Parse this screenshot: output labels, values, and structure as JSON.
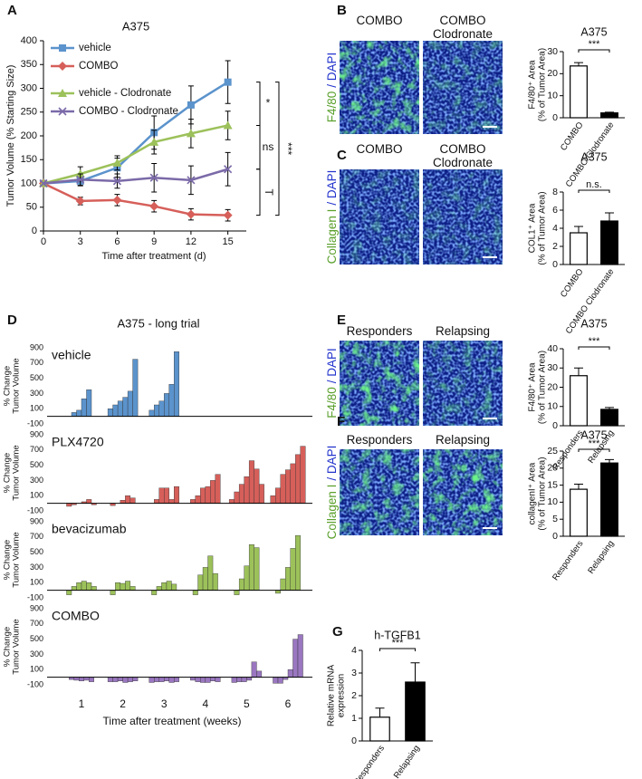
{
  "chart_data": [
    {
      "type": "line",
      "panel": "A",
      "title": "A375",
      "xlabel": "Time after treatment (d)",
      "ylabel": "Tumor Volume (% Starting Size)",
      "x": [
        0,
        3,
        6,
        9,
        12,
        15
      ],
      "xlim": [
        0,
        16.5
      ],
      "xticks": [
        0,
        3,
        6,
        9,
        12,
        15
      ],
      "ylim": [
        0,
        400
      ],
      "yticks": [
        0,
        50,
        100,
        150,
        200,
        250,
        300,
        350,
        400
      ],
      "series": [
        {
          "name": "vehicle",
          "color": "#5b93cc",
          "values": [
            100,
            105,
            133,
            207,
            265,
            313
          ],
          "errors": [
            0,
            10,
            20,
            35,
            40,
            45
          ]
        },
        {
          "name": "COMBO",
          "color": "#d65f5a",
          "values": [
            100,
            63,
            65,
            52,
            35,
            33
          ],
          "errors": [
            0,
            8,
            12,
            12,
            12,
            12
          ]
        },
        {
          "name": "vehicle - Clodronate",
          "color": "#9cc15a",
          "values": [
            100,
            120,
            143,
            187,
            205,
            222
          ],
          "errors": [
            0,
            15,
            15,
            25,
            30,
            30
          ]
        },
        {
          "name": "COMBO - Clodronate",
          "color": "#7b6aa8",
          "values": [
            100,
            108,
            105,
            112,
            107,
            130
          ],
          "errors": [
            0,
            12,
            15,
            30,
            30,
            35
          ]
        }
      ],
      "significance": [
        "*",
        "ns",
        "T",
        "***"
      ]
    },
    {
      "type": "bar",
      "panel": "B",
      "title": "A375",
      "categories": [
        "COMBO",
        "COMBO Clodronate"
      ],
      "values": [
        23.5,
        2.2
      ],
      "errors": [
        1.5,
        0.3
      ],
      "colors": [
        "#ffffff",
        "#000000"
      ],
      "ylim": [
        0,
        30
      ],
      "yticks": [
        0,
        10,
        20,
        30
      ],
      "ylabel": [
        "F4/80⁺ Area",
        "(% of Tumor Area)"
      ],
      "significance": "***",
      "image_labels": [
        "COMBO",
        "COMBO Clodronate"
      ],
      "stain": [
        "F4/80",
        "/ DAPI"
      ]
    },
    {
      "type": "bar",
      "panel": "C",
      "title": "A375",
      "categories": [
        "COMBO",
        "COMBO Clodronate"
      ],
      "values": [
        3.5,
        4.8
      ],
      "errors": [
        0.7,
        0.9
      ],
      "colors": [
        "#ffffff",
        "#000000"
      ],
      "ylim": [
        0,
        8
      ],
      "yticks": [
        0,
        2,
        4,
        6,
        8
      ],
      "ylabel": [
        "COL1⁺ Area",
        "(% of Tumor Area)"
      ],
      "significance": "n.s.",
      "image_labels": [
        "COMBO",
        "COMBO Clodronate"
      ],
      "stain": [
        "Collagen I",
        "/ DAPI"
      ]
    },
    {
      "type": "waterfall",
      "panel": "D",
      "title": "A375 - long trial",
      "xlabel": "Time after treatment (weeks)",
      "ylabel": [
        "% Change",
        "Tumor Volume"
      ],
      "categories": [
        "1",
        "2",
        "3",
        "4",
        "5",
        "6"
      ],
      "ylim": [
        -100,
        900
      ],
      "yticks": [
        -100,
        100,
        300,
        500,
        700,
        900
      ],
      "series": [
        {
          "name": "vehicle",
          "color": "#5b93cc",
          "values": [
            [
              50,
              80,
              230,
              350
            ],
            [
              100,
              150,
              200,
              250,
              330,
              750
            ],
            [
              80,
              150,
              200,
              300,
              420,
              850
            ],
            [],
            [],
            []
          ]
        },
        {
          "name": "PLX4720",
          "color": "#d65f5a",
          "values": [
            [
              -40,
              -20,
              0,
              20,
              50,
              -20
            ],
            [
              -30,
              0,
              40,
              100,
              70
            ],
            [
              0,
              50,
              200,
              200,
              50,
              220
            ],
            [
              50,
              100,
              200,
              220,
              300,
              380
            ],
            [
              50,
              150,
              250,
              350,
              560,
              450,
              250
            ],
            [
              100,
              200,
              380,
              440,
              520,
              640,
              750
            ]
          ]
        },
        {
          "name": "bevacizumab",
          "color": "#9cc15a",
          "values": [
            [
              -60,
              50,
              100,
              120,
              100,
              50
            ],
            [
              -60,
              100,
              90,
              120,
              50
            ],
            [
              -60,
              50,
              100,
              120,
              80
            ],
            [
              -60,
              200,
              300,
              450,
              220
            ],
            [
              -60,
              150,
              320,
              600,
              560
            ],
            [
              -40,
              150,
              300,
              550,
              720
            ]
          ]
        },
        {
          "name": "COMBO",
          "color": "#9a77c0",
          "values": [
            [
              -30,
              -40,
              -50,
              -40,
              -60
            ],
            [
              -60,
              -60,
              -50,
              -70,
              -60,
              -50
            ],
            [
              -70,
              -60,
              -60,
              -50,
              -70,
              -60
            ],
            [
              -40,
              -60,
              -70,
              -70,
              -50,
              -60
            ],
            [
              -70,
              -60,
              -60,
              -40,
              200,
              80
            ],
            [
              -80,
              -80,
              -30,
              100,
              500,
              560
            ]
          ]
        }
      ]
    },
    {
      "type": "bar",
      "panel": "E",
      "title": "A375",
      "categories": [
        "Responders",
        "Relapsing"
      ],
      "values": [
        26,
        8.5
      ],
      "errors": [
        4,
        1
      ],
      "colors": [
        "#ffffff",
        "#000000"
      ],
      "ylim": [
        0,
        40
      ],
      "yticks": [
        0,
        10,
        20,
        30,
        40
      ],
      "ylabel": [
        "F4/80⁺ Area",
        "(% of Tumor Area)"
      ],
      "significance": "***",
      "image_labels": [
        "Responders",
        "Relapsing"
      ],
      "stain": [
        "F4/80",
        "/ DAPI"
      ]
    },
    {
      "type": "bar",
      "panel": "F",
      "title": "A375",
      "categories": [
        "Responders",
        "Relapsing"
      ],
      "values": [
        13.8,
        21.5
      ],
      "errors": [
        1.5,
        1
      ],
      "colors": [
        "#ffffff",
        "#000000"
      ],
      "ylim": [
        0,
        25
      ],
      "yticks": [
        0,
        5,
        10,
        15,
        20,
        25
      ],
      "ylabel": [
        "collagenI⁺ Area",
        "(% of Tumor Area)"
      ],
      "significance": "***",
      "image_labels": [
        "Responders",
        "Relapsing"
      ],
      "stain": [
        "Collagen I",
        "/ DAPI"
      ]
    },
    {
      "type": "bar",
      "panel": "G",
      "title": "h-TGFB1",
      "categories": [
        "Responders",
        "Relapsing"
      ],
      "values": [
        1.05,
        2.6
      ],
      "errors": [
        0.4,
        0.85
      ],
      "colors": [
        "#ffffff",
        "#000000"
      ],
      "ylim": [
        0,
        4
      ],
      "yticks": [
        0,
        1,
        2,
        3,
        4
      ],
      "ylabel": [
        "Relative mRNA",
        "expression"
      ],
      "significance": "***"
    }
  ]
}
